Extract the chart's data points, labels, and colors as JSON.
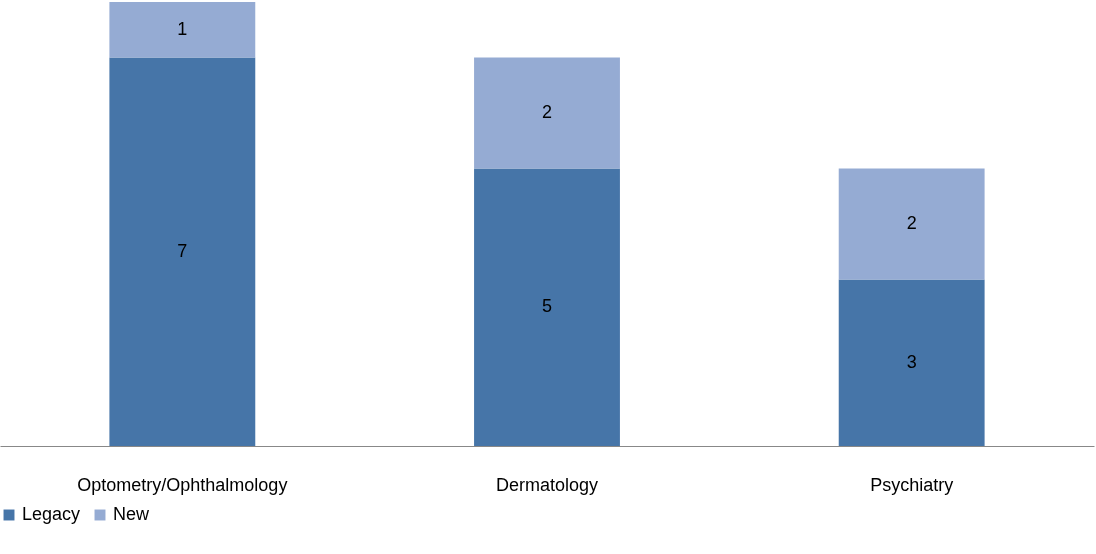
{
  "chart_data": {
    "type": "bar",
    "stacked": true,
    "data_labels": true,
    "legend": "bottom",
    "grid": false,
    "categories": [
      "Optometry/Ophthalmology",
      "Dermatology",
      "Psychiatry"
    ],
    "series": [
      {
        "name": "Legacy",
        "color": "#4675a8",
        "values": [
          7,
          5,
          3
        ]
      },
      {
        "name": "New",
        "color": "#95abd3",
        "values": [
          1,
          2,
          2
        ]
      }
    ]
  }
}
